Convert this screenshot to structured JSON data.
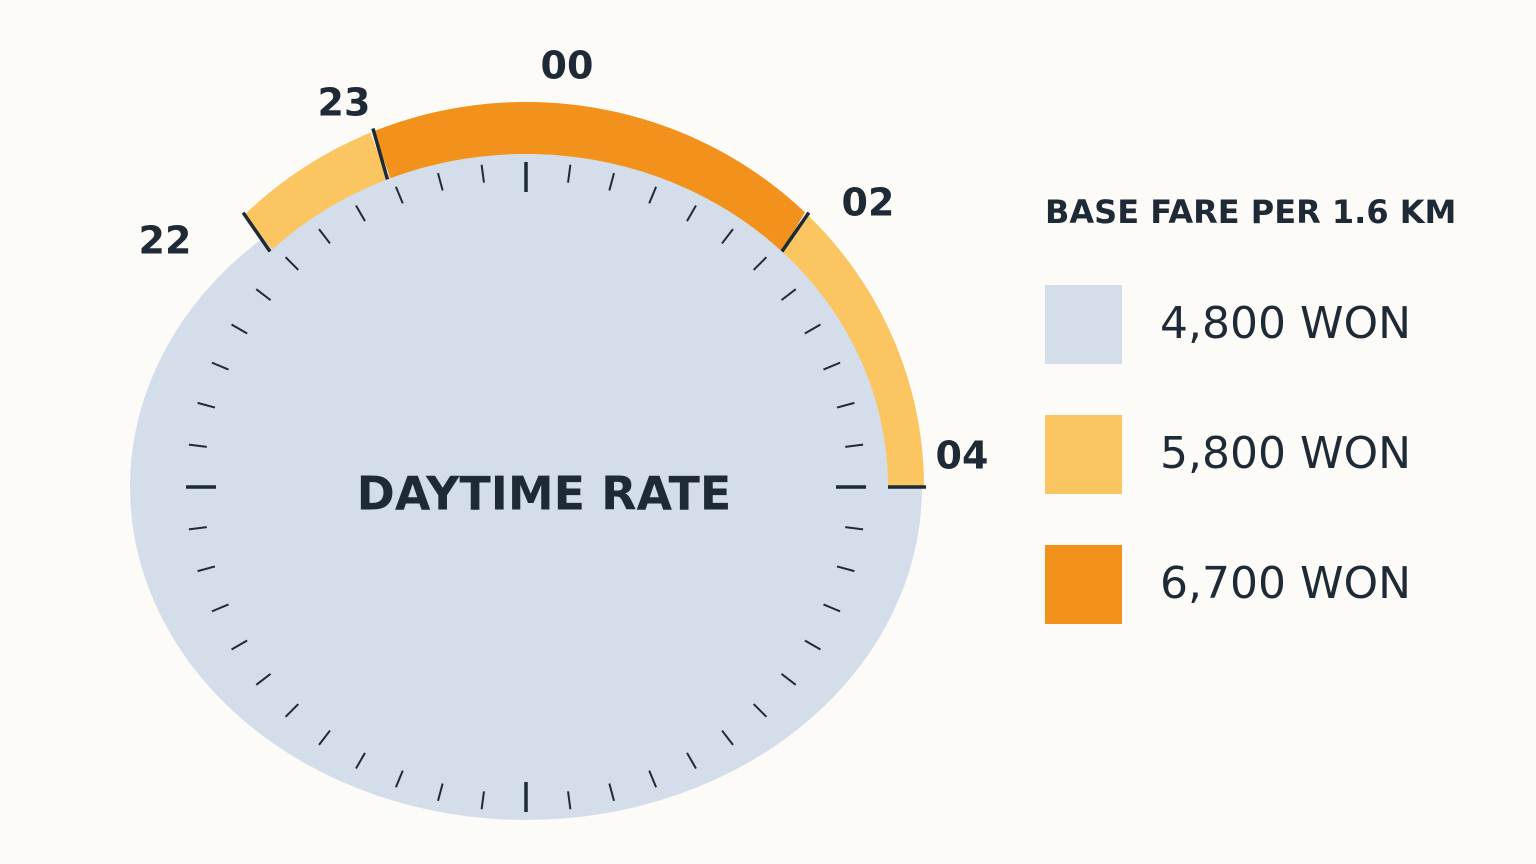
{
  "dial": {
    "center_label": "DAYTIME RATE",
    "hour_labels": [
      "22",
      "23",
      "00",
      "02",
      "04"
    ]
  },
  "legend": {
    "title": "BASE FARE PER 1.6 KM",
    "items": [
      {
        "label": "4,800 WON",
        "color": "#d3deea"
      },
      {
        "label": "5,800 WON",
        "color": "#fbc562"
      },
      {
        "label": "6,700 WON",
        "color": "#f2911b"
      }
    ]
  }
}
